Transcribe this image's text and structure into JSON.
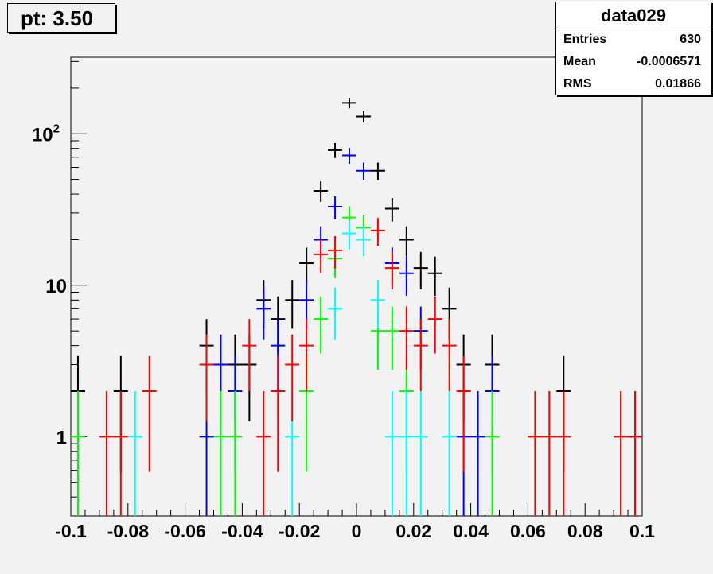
{
  "pad_title": "pt: 3.50",
  "stats_box": {
    "name": "data029",
    "rows": [
      {
        "label": "Entries",
        "value": "630"
      },
      {
        "label": "Mean",
        "value": "-0.0006571"
      },
      {
        "label": "RMS",
        "value": "0.01866"
      }
    ]
  },
  "colors": {
    "black": "#000000",
    "blue": "#0000ff",
    "green": "#00ff00",
    "cyan": "#00ffff",
    "red": "#ff0000",
    "background": "#f2f2f2"
  },
  "chart_data": {
    "type": "scatter",
    "title": "",
    "xlabel": "",
    "ylabel": "",
    "xlim": [
      -0.1,
      0.1
    ],
    "ylim": [
      0.3,
      320
    ],
    "y_scale": "log",
    "bin_width": 0.005,
    "x_ticks": [
      {
        "value": -0.1,
        "label": "-0.1"
      },
      {
        "value": -0.08,
        "label": "-0.08"
      },
      {
        "value": -0.06,
        "label": "-0.06"
      },
      {
        "value": -0.04,
        "label": "-0.04"
      },
      {
        "value": -0.02,
        "label": "-0.02"
      },
      {
        "value": 0,
        "label": "0"
      },
      {
        "value": 0.02,
        "label": "0.02"
      },
      {
        "value": 0.04,
        "label": "0.04"
      },
      {
        "value": 0.06,
        "label": "0.06"
      },
      {
        "value": 0.08,
        "label": "0.08"
      },
      {
        "value": 0.1,
        "label": "0.1"
      }
    ],
    "y_ticks": [
      {
        "value": 1,
        "label": "1",
        "exp": ""
      },
      {
        "value": 10,
        "label": "10",
        "exp": ""
      },
      {
        "value": 100,
        "label": "10",
        "exp": "2"
      }
    ],
    "series": [
      {
        "color": "#000000",
        "points": [
          [
            -0.0975,
            2
          ],
          [
            -0.0825,
            2
          ],
          [
            -0.0525,
            4
          ],
          [
            -0.0425,
            3
          ],
          [
            -0.0375,
            3
          ],
          [
            -0.0325,
            8
          ],
          [
            -0.0275,
            6
          ],
          [
            -0.0225,
            8
          ],
          [
            -0.0175,
            14
          ],
          [
            -0.0125,
            42
          ],
          [
            -0.0075,
            78
          ],
          [
            -0.0025,
            160
          ],
          [
            0.0025,
            130
          ],
          [
            0.0075,
            57
          ],
          [
            0.0125,
            32
          ],
          [
            0.0175,
            20
          ],
          [
            0.0225,
            13
          ],
          [
            0.0275,
            12
          ],
          [
            0.0325,
            7
          ],
          [
            0.0375,
            3
          ],
          [
            0.0475,
            3
          ],
          [
            0.0725,
            2
          ]
        ]
      },
      {
        "color": "#0000ff",
        "points": [
          [
            -0.0525,
            1
          ],
          [
            -0.0475,
            3
          ],
          [
            -0.0425,
            2
          ],
          [
            -0.0325,
            7
          ],
          [
            -0.0275,
            4
          ],
          [
            -0.0175,
            8
          ],
          [
            -0.0125,
            20
          ],
          [
            -0.0075,
            33
          ],
          [
            -0.0025,
            72
          ],
          [
            0.0025,
            57
          ],
          [
            0.0125,
            14
          ],
          [
            0.0175,
            12
          ],
          [
            0.0225,
            5
          ],
          [
            0.0375,
            1
          ],
          [
            0.0425,
            1
          ],
          [
            0.0475,
            2
          ],
          [
            0.0975,
            1
          ]
        ]
      },
      {
        "color": "#00ff00",
        "points": [
          [
            -0.0975,
            1
          ],
          [
            -0.0475,
            1
          ],
          [
            -0.0425,
            1
          ],
          [
            -0.0175,
            2
          ],
          [
            -0.0125,
            6
          ],
          [
            -0.0075,
            15
          ],
          [
            -0.0025,
            28
          ],
          [
            0.0025,
            24
          ],
          [
            0.0075,
            5
          ],
          [
            0.0125,
            5
          ],
          [
            0.0175,
            2
          ],
          [
            0.0475,
            1
          ]
        ]
      },
      {
        "color": "#00ffff",
        "points": [
          [
            -0.0775,
            1
          ],
          [
            -0.0225,
            1
          ],
          [
            -0.0075,
            7
          ],
          [
            -0.0025,
            22
          ],
          [
            0.0025,
            20
          ],
          [
            0.0075,
            8
          ],
          [
            0.0125,
            1
          ],
          [
            0.0175,
            1
          ],
          [
            0.0225,
            1
          ],
          [
            0.0325,
            1
          ]
        ]
      },
      {
        "color": "#ff0000",
        "points": [
          [
            -0.0875,
            1
          ],
          [
            -0.0825,
            1
          ],
          [
            -0.0725,
            2
          ],
          [
            -0.0525,
            3
          ],
          [
            -0.0375,
            4
          ],
          [
            -0.0325,
            1
          ],
          [
            -0.0275,
            2
          ],
          [
            -0.0225,
            3
          ],
          [
            -0.0175,
            4
          ],
          [
            -0.0125,
            16
          ],
          [
            -0.0075,
            17
          ],
          [
            0.0075,
            23
          ],
          [
            0.0125,
            13
          ],
          [
            0.0175,
            5
          ],
          [
            0.0225,
            4
          ],
          [
            0.0275,
            6
          ],
          [
            0.0325,
            4
          ],
          [
            0.0375,
            2
          ],
          [
            0.0625,
            1
          ],
          [
            0.0675,
            1
          ],
          [
            0.0725,
            1
          ],
          [
            0.0925,
            1
          ],
          [
            0.0975,
            1
          ]
        ]
      }
    ]
  }
}
